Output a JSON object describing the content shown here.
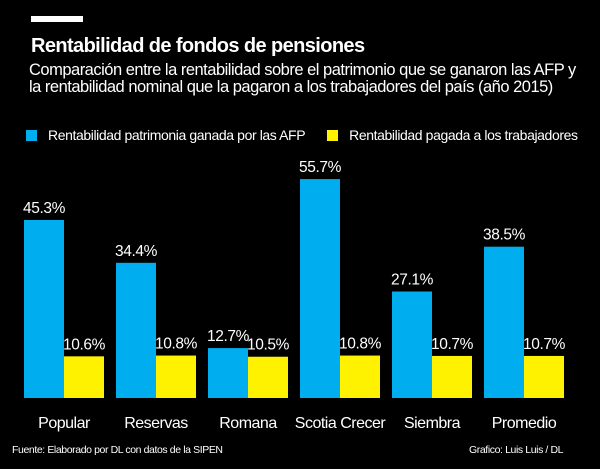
{
  "header": {
    "title": "Rentabilidad de fondos de pensiones",
    "subtitle": "Comparación entre la rentabilidad sobre el patrimonio que se ganaron las AFP y la rentabilidad nominal que la pagaron a los trabajadores del país (año 2015)"
  },
  "chart_data": {
    "type": "bar",
    "title": "Rentabilidad de fondos de pensiones",
    "categories": [
      "Popular",
      "Reservas",
      "Romana",
      "Scotia Crecer",
      "Siembra",
      "Promedio"
    ],
    "series": [
      {
        "name": "Rentabilidad patrimonia ganada por las AFP",
        "color": "#00aeef",
        "values": [
          45.3,
          34.4,
          12.7,
          55.7,
          27.1,
          38.5
        ]
      },
      {
        "name": "Rentabilidad pagada a los trabajadores",
        "color": "#fff200",
        "values": [
          10.6,
          10.8,
          10.5,
          10.8,
          10.7,
          10.7
        ]
      }
    ],
    "value_suffix": "%",
    "legend": "top-left",
    "grid": false,
    "ylim": [
      0,
      60
    ]
  },
  "footer": {
    "source": "Fuente: Elaborado por DL con datos de la SIPEN",
    "credit": "Grafico: Luis Luis / DL"
  }
}
